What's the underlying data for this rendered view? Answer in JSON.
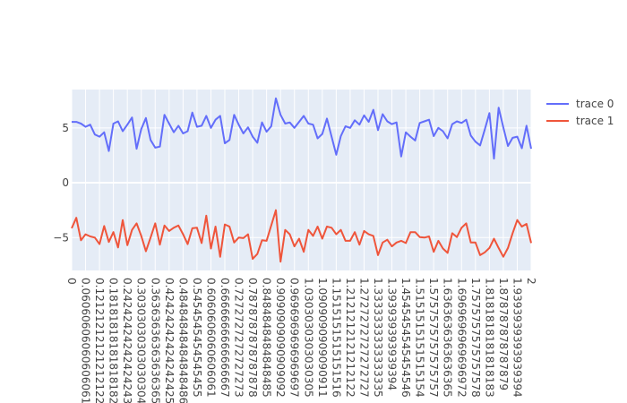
{
  "chart_data": {
    "type": "line",
    "title": "",
    "xlabel": "",
    "ylabel": "",
    "x_axis_type": "category",
    "x_count": 100,
    "x_tick_every": 3,
    "x_tick_labels": [
      "0",
      "0.06060606060606061",
      "0.12121212121212122",
      "0.18181818181818182",
      "0.24242424242424243",
      "0.30303030303030304",
      "0.36363636363636365",
      "0.42424242424242425",
      "0.48484848484848486",
      "0.5454545454545455",
      "0.6060606060606061",
      "0.6666666666666667",
      "0.7272727272727273",
      "0.7878787878787878",
      "0.8484848484848485",
      "0.9090909090909092",
      "0.9696969696969697",
      "1.0303030303030305",
      "1.0909090909090911",
      "1.1515151515151516",
      "1.2121212121212122",
      "1.2727272727272727",
      "1.3333333333333335",
      "1.393939393939394",
      "1.4545454545454546",
      "1.5151515151515154",
      "1.5757575757575757",
      "1.6363636363636365",
      "1.6969696969696972",
      "1.7575757575757578",
      "1.8181818181818183",
      "1.878787878787879",
      "1.9393939393939394",
      "2"
    ],
    "ylim": [
      -8.0,
      8.5
    ],
    "y_ticks": [
      5,
      0,
      -5
    ],
    "y_tick_labels": [
      "5",
      "0",
      "−5"
    ],
    "grid": true,
    "legend_position": "top-right",
    "series": [
      {
        "name": "trace 0",
        "color": "#636EFA",
        "values": [
          5.55,
          5.55,
          5.4,
          5.1,
          5.3,
          4.4,
          4.2,
          4.6,
          2.9,
          5.4,
          5.6,
          4.7,
          5.3,
          5.95,
          3.1,
          4.9,
          5.9,
          3.9,
          3.2,
          3.3,
          6.2,
          5.4,
          4.6,
          5.2,
          4.5,
          4.7,
          6.4,
          5.1,
          5.2,
          6.1,
          5.0,
          5.75,
          6.1,
          3.6,
          3.9,
          6.2,
          5.3,
          4.5,
          5.05,
          4.2,
          3.65,
          5.5,
          4.65,
          5.15,
          7.7,
          6.2,
          5.4,
          5.5,
          5.0,
          5.55,
          6.1,
          5.4,
          5.3,
          4.05,
          4.45,
          5.85,
          4.2,
          2.55,
          4.25,
          5.15,
          5.0,
          5.7,
          5.3,
          6.15,
          5.55,
          6.65,
          4.8,
          6.25,
          5.6,
          5.35,
          5.5,
          2.4,
          4.6,
          4.2,
          3.85,
          5.45,
          5.6,
          5.75,
          4.25,
          5.0,
          4.7,
          4.05,
          5.35,
          5.6,
          5.45,
          5.75,
          4.3,
          3.75,
          3.4,
          4.85,
          6.35,
          2.2,
          6.85,
          5.05,
          3.35,
          4.1,
          4.2,
          3.15,
          5.2,
          3.1
        ]
      },
      {
        "name": "trace 1",
        "color": "#EF553B",
        "values": [
          -4.15,
          -3.2,
          -5.25,
          -4.7,
          -4.9,
          -5.0,
          -5.6,
          -3.95,
          -5.4,
          -4.5,
          -5.9,
          -3.4,
          -5.7,
          -4.3,
          -3.7,
          -4.85,
          -6.25,
          -5.0,
          -3.7,
          -5.65,
          -3.9,
          -4.4,
          -4.1,
          -3.9,
          -4.7,
          -5.6,
          -4.15,
          -4.1,
          -5.5,
          -3.0,
          -6.0,
          -4.0,
          -6.75,
          -3.8,
          -4.0,
          -5.45,
          -5.0,
          -5.05,
          -4.7,
          -6.95,
          -6.5,
          -5.25,
          -5.3,
          -3.9,
          -2.5,
          -7.2,
          -4.3,
          -4.7,
          -5.8,
          -5.1,
          -6.3,
          -4.3,
          -4.85,
          -4.0,
          -5.1,
          -4.0,
          -4.1,
          -4.7,
          -4.3,
          -5.3,
          -5.3,
          -4.5,
          -5.65,
          -4.4,
          -4.7,
          -4.85,
          -6.6,
          -5.45,
          -5.2,
          -5.8,
          -5.45,
          -5.3,
          -5.5,
          -4.5,
          -4.5,
          -4.95,
          -5.0,
          -4.9,
          -6.3,
          -5.3,
          -6.0,
          -6.4,
          -4.6,
          -4.95,
          -4.1,
          -3.7,
          -5.45,
          -5.45,
          -6.6,
          -6.35,
          -5.95,
          -5.1,
          -5.95,
          -6.75,
          -5.95,
          -4.6,
          -3.4,
          -4.0,
          -3.75,
          -5.5
        ]
      }
    ]
  }
}
